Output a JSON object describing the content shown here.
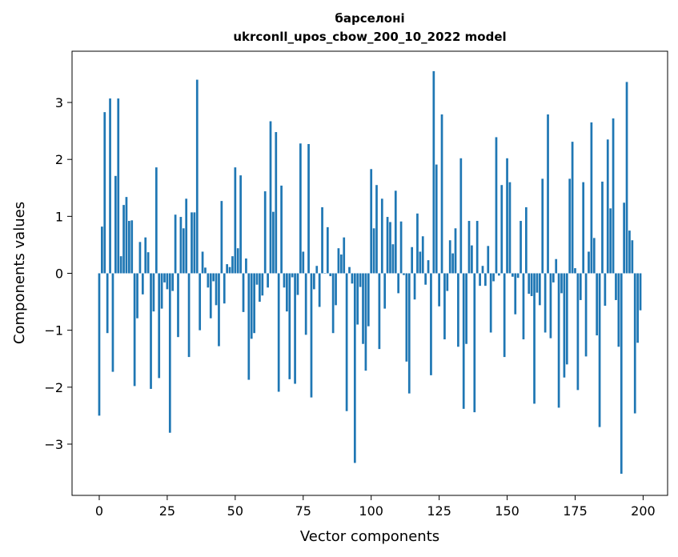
{
  "chart_data": {
    "type": "bar",
    "title_line1": "барселоні",
    "title_line2": "ukrconll_upos_cbow_200_10_2022 model",
    "xlabel": "Vector components",
    "ylabel": "Components values",
    "xlim": [
      -10,
      209
    ],
    "ylim": [
      -3.9,
      3.9
    ],
    "xticks": [
      0,
      25,
      50,
      75,
      100,
      125,
      150,
      175,
      200
    ],
    "xtick_labels": [
      "0",
      "25",
      "50",
      "75",
      "100",
      "125",
      "150",
      "175",
      "200"
    ],
    "yticks": [
      -3,
      -2,
      -1,
      0,
      1,
      2,
      3
    ],
    "ytick_labels": [
      "−3",
      "−2",
      "−1",
      "0",
      "1",
      "2",
      "3"
    ],
    "color": "#1f77b4",
    "values": [
      -2.5,
      0.82,
      2.83,
      -1.05,
      3.07,
      -1.73,
      1.71,
      3.07,
      0.3,
      1.2,
      1.34,
      0.92,
      0.93,
      -1.98,
      -0.79,
      0.55,
      -0.37,
      0.63,
      0.37,
      -2.03,
      -0.67,
      1.86,
      -1.84,
      -0.62,
      -0.16,
      -0.28,
      -2.8,
      -0.31,
      1.03,
      -1.12,
      0.99,
      0.79,
      1.31,
      -1.47,
      1.07,
      1.07,
      3.4,
      -1.0,
      0.38,
      0.1,
      -0.25,
      -0.79,
      -0.14,
      -0.56,
      -1.28,
      1.27,
      -0.53,
      0.16,
      0.11,
      0.3,
      1.86,
      0.44,
      1.72,
      -0.68,
      0.26,
      -1.87,
      -1.15,
      -1.05,
      -0.2,
      -0.5,
      -0.39,
      1.44,
      -0.25,
      2.67,
      1.08,
      2.48,
      -2.08,
      1.54,
      -0.25,
      -0.67,
      -1.86,
      -0.07,
      -1.94,
      -0.38,
      2.28,
      0.38,
      -1.08,
      2.27,
      -2.18,
      -0.28,
      0.13,
      -0.59,
      1.16,
      0.0,
      0.81,
      -0.05,
      -1.05,
      -0.56,
      0.44,
      0.33,
      0.63,
      -2.42,
      0.11,
      -0.18,
      -3.33,
      -0.9,
      -0.24,
      -1.24,
      -1.71,
      -0.93,
      1.83,
      0.79,
      1.55,
      -1.33,
      1.31,
      -0.62,
      0.99,
      0.9,
      0.51,
      1.45,
      -0.35,
      0.91,
      -0.03,
      -1.55,
      -2.11,
      0.46,
      -0.46,
      1.05,
      0.38,
      0.65,
      -0.2,
      0.23,
      -1.79,
      3.55,
      1.91,
      -0.58,
      2.79,
      -1.16,
      -0.31,
      0.58,
      0.35,
      0.79,
      -1.29,
      2.02,
      -2.38,
      -1.24,
      0.92,
      0.49,
      -2.44,
      0.92,
      -0.22,
      0.13,
      -0.22,
      0.48,
      -1.04,
      -0.14,
      2.39,
      -0.04,
      1.55,
      -1.47,
      2.02,
      1.6,
      -0.06,
      -0.72,
      -0.08,
      0.92,
      -1.16,
      1.16,
      -0.36,
      -0.4,
      -2.29,
      -0.34,
      -0.56,
      1.66,
      -1.04,
      2.79,
      -1.14,
      -0.16,
      0.25,
      -2.36,
      -0.35,
      -1.83,
      -1.6,
      1.66,
      2.31,
      0.09,
      -2.05,
      -0.47,
      1.6,
      -1.46,
      0.38,
      2.65,
      0.62,
      -1.09,
      -2.7,
      1.61,
      -0.57,
      2.35,
      1.14,
      2.72,
      -0.47,
      -1.29,
      -3.52,
      1.24,
      3.36,
      0.75,
      0.58,
      -2.46,
      -1.22,
      -0.65
    ]
  }
}
